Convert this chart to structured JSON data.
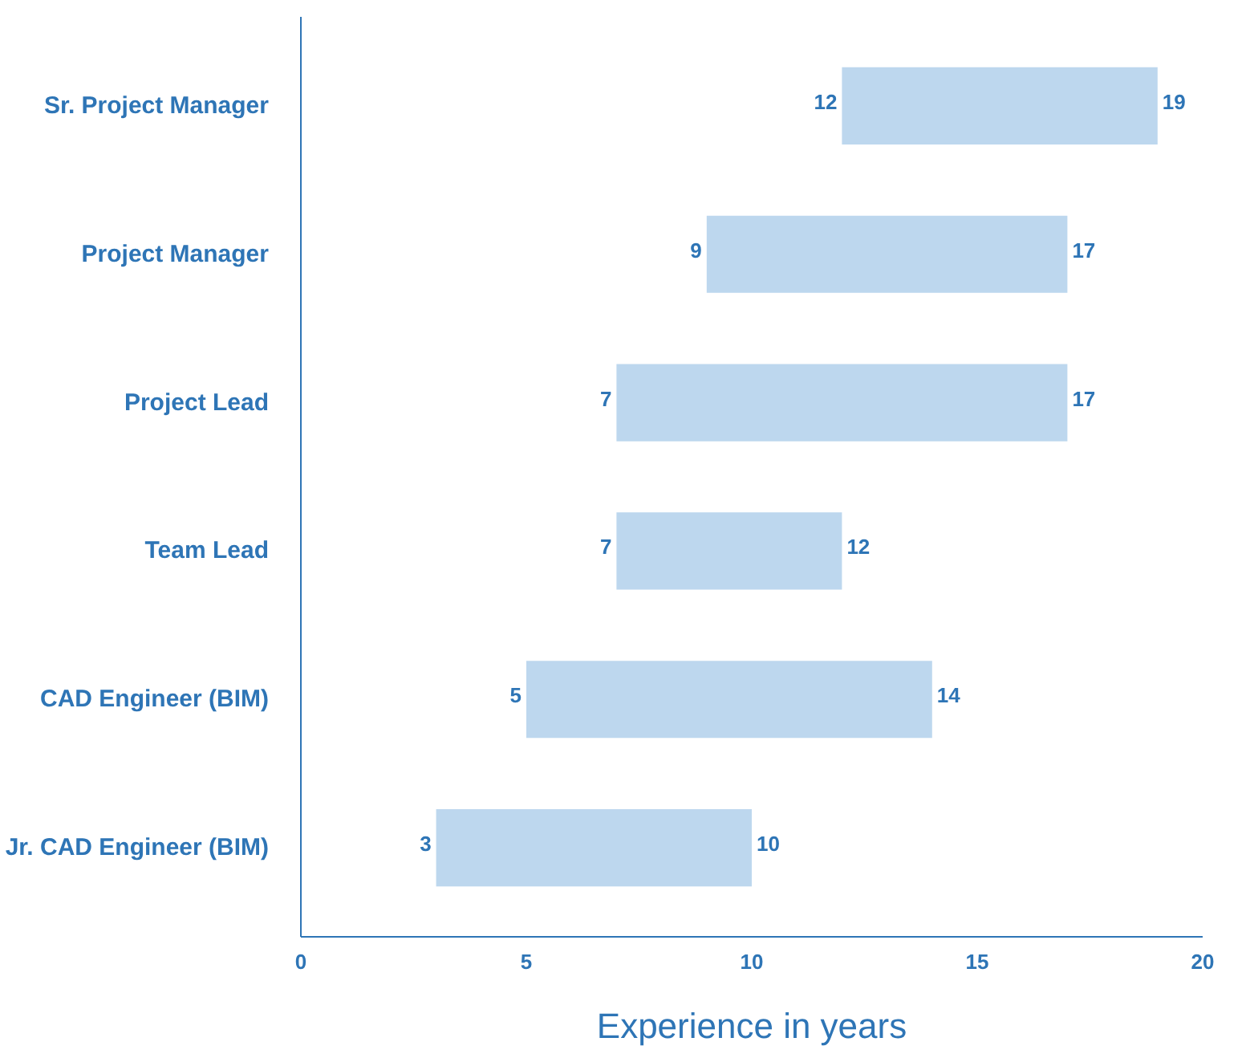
{
  "chart_data": {
    "type": "bar",
    "orientation": "horizontal",
    "xlabel": "Experience in years",
    "categories": [
      "Sr. Project Manager",
      "Project Manager",
      "Project Lead",
      "Team Lead",
      "CAD Engineer (BIM)",
      "Jr. CAD Engineer (BIM)"
    ],
    "base": [
      12,
      9,
      7,
      7,
      5,
      3
    ],
    "values": [
      7,
      8,
      10,
      5,
      9,
      7
    ],
    "color": "#bdd7ee",
    "xlim": [
      0,
      20
    ],
    "xticks": [
      0,
      5,
      10,
      15,
      20
    ],
    "grid": false,
    "annotations": [
      {
        "text": "12",
        "x": 12,
        "y": "Sr. Project Manager"
      },
      {
        "text": "19",
        "x": 19,
        "y": "Sr. Project Manager"
      },
      {
        "text": "9",
        "x": 9,
        "y": "Project Manager"
      },
      {
        "text": "17",
        "x": 17,
        "y": "Project Manager"
      },
      {
        "text": "7",
        "x": 7,
        "y": "Project Lead"
      },
      {
        "text": "17",
        "x": 17,
        "y": "Project Lead"
      },
      {
        "text": "7",
        "x": 7,
        "y": "Team Lead"
      },
      {
        "text": "12",
        "x": 12,
        "y": "Team Lead"
      },
      {
        "text": "5",
        "x": 5,
        "y": "CAD Engineer (BIM)"
      },
      {
        "text": "14",
        "x": 14,
        "y": "CAD Engineer (BIM)"
      },
      {
        "text": "3",
        "x": 3,
        "y": "Jr. CAD Engineer (BIM)"
      },
      {
        "text": "10",
        "x": 10,
        "y": "Jr. CAD Engineer (BIM)"
      }
    ]
  }
}
